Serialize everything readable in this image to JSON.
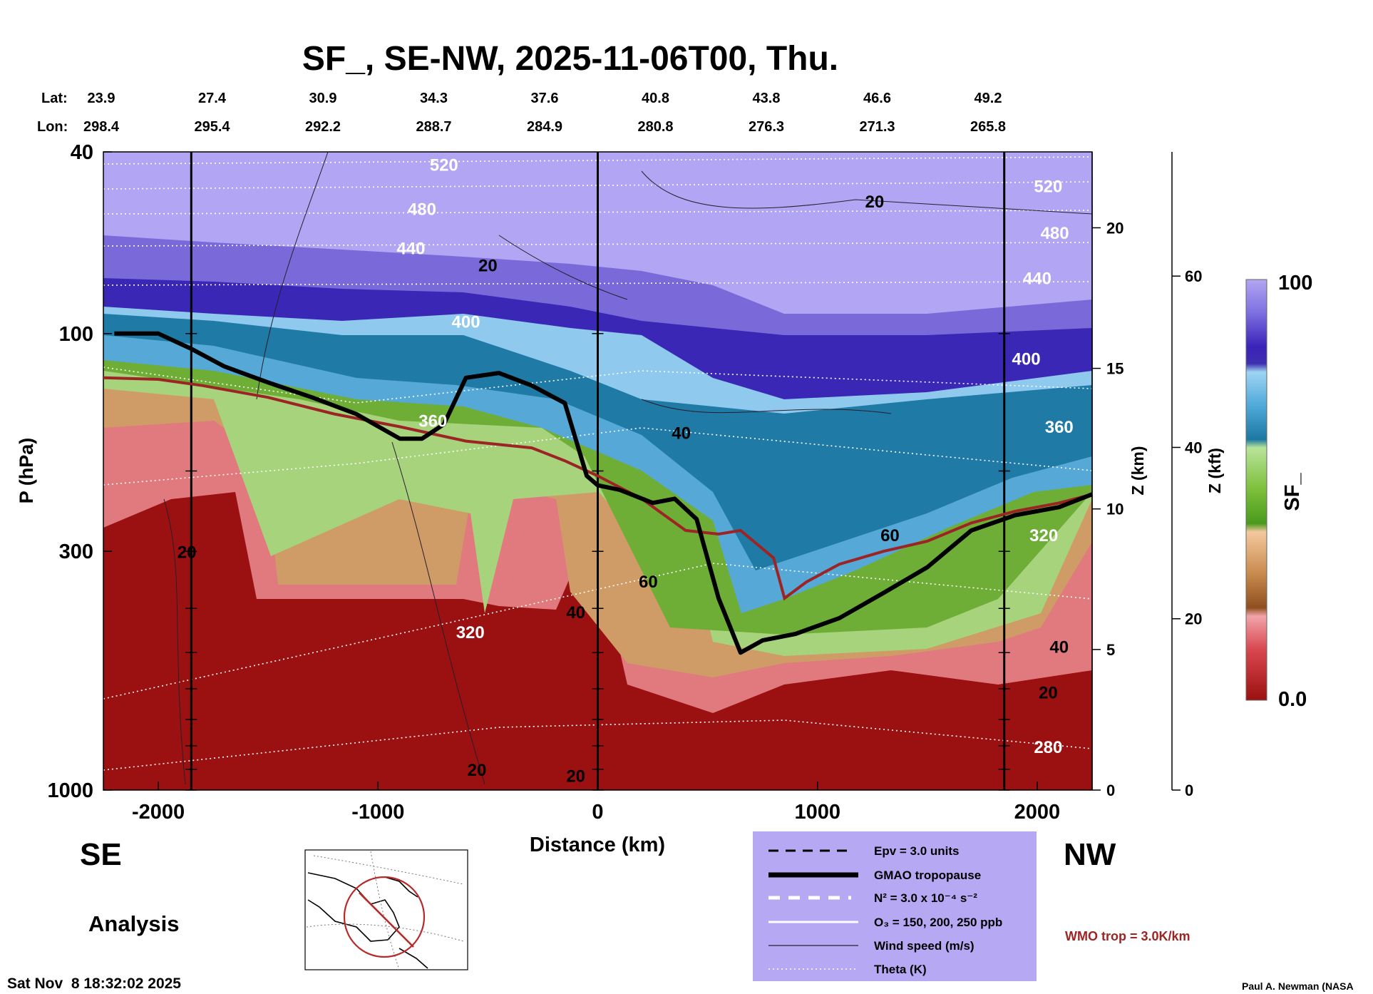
{
  "chart_data": {
    "type": "heatmap",
    "title": "SF_, SE-NW, 2025-11-06T00, Thu.",
    "xlabel": "Distance (km)",
    "ylabel": "P (hPa)",
    "z_label": "Z (km)",
    "zkft_label": "Z (kft)",
    "colorbar_label": "SF_",
    "colorbar_max": "100",
    "colorbar_min": "0.0",
    "xlim": [
      -2250,
      2250
    ],
    "ylim": [
      1000,
      40
    ],
    "x_ticks": [
      {
        "value": -2000,
        "label": "-2000"
      },
      {
        "value": -1000,
        "label": "-1000"
      },
      {
        "value": 0,
        "label": "0"
      },
      {
        "value": 1000,
        "label": "1000"
      },
      {
        "value": 2000,
        "label": "2000"
      }
    ],
    "p_ticks": [
      {
        "value": 40,
        "label": "40"
      },
      {
        "value": 100,
        "label": "100"
      },
      {
        "value": 300,
        "label": "300"
      },
      {
        "value": 1000,
        "label": "1000"
      }
    ],
    "z_ticks": [
      {
        "value": 0,
        "label": "0"
      },
      {
        "value": 5,
        "label": "5"
      },
      {
        "value": 10,
        "label": "10"
      },
      {
        "value": 15,
        "label": "15"
      },
      {
        "value": 20,
        "label": "20"
      }
    ],
    "zkft_ticks": [
      {
        "value": 0,
        "label": "0"
      },
      {
        "value": 20,
        "label": "20"
      },
      {
        "value": 40,
        "label": "40"
      },
      {
        "value": 60,
        "label": "60"
      }
    ],
    "lat_label": "Lat:",
    "lon_label": "Lon:",
    "lats": [
      "23.9",
      "27.4",
      "30.9",
      "34.3",
      "37.6",
      "40.8",
      "43.8",
      "46.6",
      "49.2"
    ],
    "lons": [
      "298.4",
      "295.4",
      "292.2",
      "288.7",
      "284.9",
      "280.8",
      "276.3",
      "271.3",
      "265.8"
    ],
    "vertical_lines_km": [
      -1850,
      0,
      1850
    ],
    "gmao_tropopause": [
      [
        -2200,
        100
      ],
      [
        -2000,
        100
      ],
      [
        -1850,
        108
      ],
      [
        -1700,
        118
      ],
      [
        -1500,
        128
      ],
      [
        -1300,
        138
      ],
      [
        -1100,
        150
      ],
      [
        -900,
        170
      ],
      [
        -800,
        170
      ],
      [
        -700,
        158
      ],
      [
        -600,
        125
      ],
      [
        -450,
        122
      ],
      [
        -300,
        130
      ],
      [
        -150,
        142
      ],
      [
        -50,
        205
      ],
      [
        0,
        215
      ],
      [
        100,
        220
      ],
      [
        250,
        235
      ],
      [
        350,
        230
      ],
      [
        450,
        255
      ],
      [
        550,
        380
      ],
      [
        650,
        500
      ],
      [
        750,
        470
      ],
      [
        900,
        455
      ],
      [
        1100,
        420
      ],
      [
        1300,
        370
      ],
      [
        1500,
        325
      ],
      [
        1700,
        270
      ],
      [
        1900,
        250
      ],
      [
        2100,
        240
      ],
      [
        2250,
        225
      ]
    ],
    "wmo_tropopause_label": "WMO trop = 3.0K/km",
    "wmo_tropopause": [
      [
        -2250,
        125
      ],
      [
        -2000,
        126
      ],
      [
        -1800,
        130
      ],
      [
        -1500,
        138
      ],
      [
        -1200,
        150
      ],
      [
        -900,
        160
      ],
      [
        -600,
        172
      ],
      [
        -300,
        178
      ],
      [
        -150,
        190
      ],
      [
        0,
        205
      ],
      [
        200,
        230
      ],
      [
        400,
        270
      ],
      [
        550,
        275
      ],
      [
        650,
        270
      ],
      [
        800,
        310
      ],
      [
        850,
        380
      ],
      [
        950,
        350
      ],
      [
        1100,
        320
      ],
      [
        1300,
        300
      ],
      [
        1500,
        285
      ],
      [
        1700,
        260
      ],
      [
        1900,
        245
      ],
      [
        2100,
        235
      ],
      [
        2250,
        225
      ]
    ],
    "theta_labels": [
      {
        "text": "520",
        "x": -700,
        "p": 44
      },
      {
        "text": "480",
        "x": -800,
        "p": 55
      },
      {
        "text": "440",
        "x": -850,
        "p": 67
      },
      {
        "text": "400",
        "x": -600,
        "p": 97
      },
      {
        "text": "360",
        "x": -750,
        "p": 160
      },
      {
        "text": "320",
        "x": -580,
        "p": 465
      },
      {
        "text": "280",
        "x": 2050,
        "p": 830
      },
      {
        "text": "520",
        "x": 2050,
        "p": 49
      },
      {
        "text": "480",
        "x": 2080,
        "p": 62
      },
      {
        "text": "440",
        "x": 2000,
        "p": 78
      },
      {
        "text": "400",
        "x": 1950,
        "p": 117
      },
      {
        "text": "360",
        "x": 2100,
        "p": 165
      },
      {
        "text": "320",
        "x": 2030,
        "p": 285
      }
    ],
    "wind_labels": [
      {
        "text": "20",
        "x": -500,
        "p": 73
      },
      {
        "text": "20",
        "x": 1260,
        "p": 53
      },
      {
        "text": "40",
        "x": 380,
        "p": 170
      },
      {
        "text": "60",
        "x": 1330,
        "p": 285
      },
      {
        "text": "20",
        "x": -1870,
        "p": 310
      },
      {
        "text": "40",
        "x": -100,
        "p": 420
      },
      {
        "text": "60",
        "x": 230,
        "p": 360
      },
      {
        "text": "40",
        "x": 2100,
        "p": 500
      },
      {
        "text": "20",
        "x": 2050,
        "p": 630
      },
      {
        "text": "20",
        "x": -550,
        "p": 930
      },
      {
        "text": "20",
        "x": -100,
        "p": 960
      }
    ]
  },
  "labels": {
    "se": "SE",
    "nw": "NW",
    "analysis": "Analysis",
    "timestamp": "Sat Nov  8 18:32:02 2025",
    "credit": "Paul A. Newman (NASA"
  },
  "legend": {
    "epv": "Epv = 3.0 units",
    "gmao": "GMAO tropopause",
    "n2": "N² = 3.0 x 10⁻⁴ s⁻²",
    "o3": "O₃ = 150, 200, 250 ppb",
    "wind": "Wind speed (m/s)",
    "theta": "Theta (K)"
  },
  "colors": {
    "legend_bg": "#b7a8f4",
    "wmo": "#9c2424",
    "plot_bg": "#9b1010"
  }
}
